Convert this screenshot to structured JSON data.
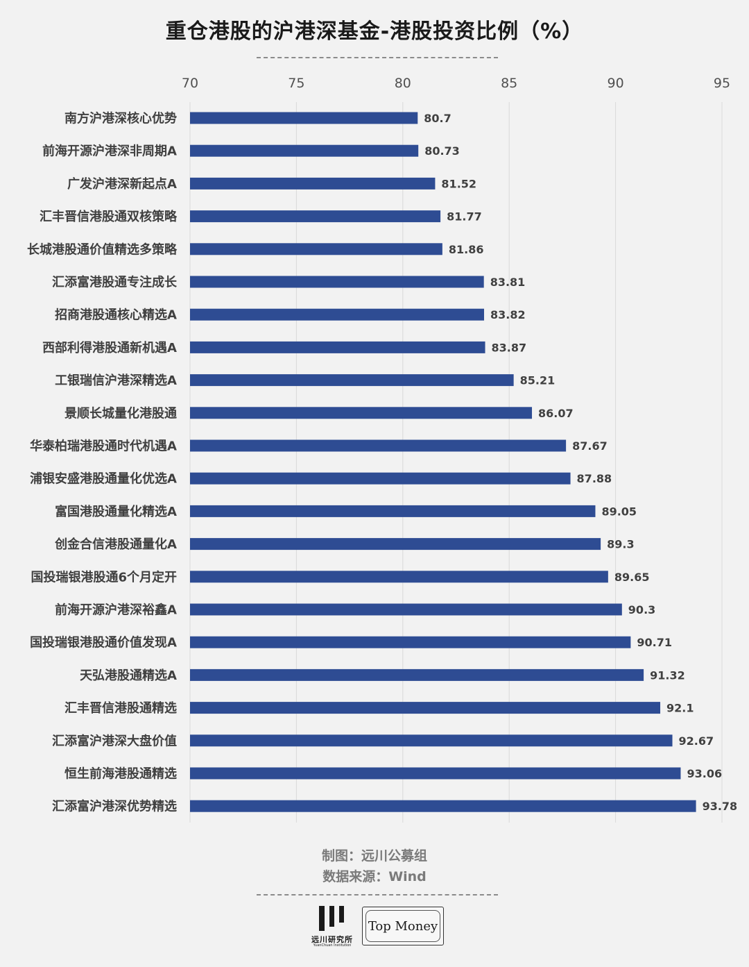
{
  "header": {
    "title": "重仓港股的沪港深基金-港股投资比例（%）"
  },
  "footer": {
    "made_by": "制图：远川公募组",
    "source": "数据来源：Wind"
  },
  "logos": {
    "left_cn": "远川研究所",
    "left_en": "YuanChuan Institution",
    "right_text": "Top Money"
  },
  "colors": {
    "bar": "#2e4c93",
    "grid": "#d9d9d9",
    "text": "#404040"
  },
  "chart_data": {
    "type": "bar",
    "orientation": "horizontal",
    "title": "重仓港股的沪港深基金-港股投资比例（%）",
    "xlim": [
      70,
      95
    ],
    "xticks": [
      70,
      75,
      80,
      85,
      90,
      95
    ],
    "axis_position": "top",
    "grid": true,
    "categories": [
      "南方沪港深核心优势",
      "前海开源沪港深非周期A",
      "广发沪港深新起点A",
      "汇丰晋信港股通双核策略",
      "长城港股通价值精选多策略",
      "汇添富港股通专注成长",
      "招商港股通核心精选A",
      "西部利得港股通新机遇A",
      "工银瑞信沪港深精选A",
      "景顺长城量化港股通",
      "华泰柏瑞港股通时代机遇A",
      "浦银安盛港股通量化优选A",
      "富国港股通量化精选A",
      "创金合信港股通量化A",
      "国投瑞银港股通6个月定开",
      "前海开源沪港深裕鑫A",
      "国投瑞银港股通价值发现A",
      "天弘港股通精选A",
      "汇丰晋信港股通精选",
      "汇添富沪港深大盘价值",
      "恒生前海港股通精选",
      "汇添富沪港深优势精选"
    ],
    "values": [
      80.7,
      80.73,
      81.52,
      81.77,
      81.86,
      83.81,
      83.82,
      83.87,
      85.21,
      86.07,
      87.67,
      87.88,
      89.05,
      89.3,
      89.65,
      90.3,
      90.71,
      91.32,
      92.1,
      92.67,
      93.06,
      93.78
    ],
    "value_labels": [
      "80.7",
      "80.73",
      "81.52",
      "81.77",
      "81.86",
      "83.81",
      "83.82",
      "83.87",
      "85.21",
      "86.07",
      "87.67",
      "87.88",
      "89.05",
      "89.3",
      "89.65",
      "90.3",
      "90.71",
      "91.32",
      "92.1",
      "92.67",
      "93.06",
      "93.78"
    ]
  }
}
